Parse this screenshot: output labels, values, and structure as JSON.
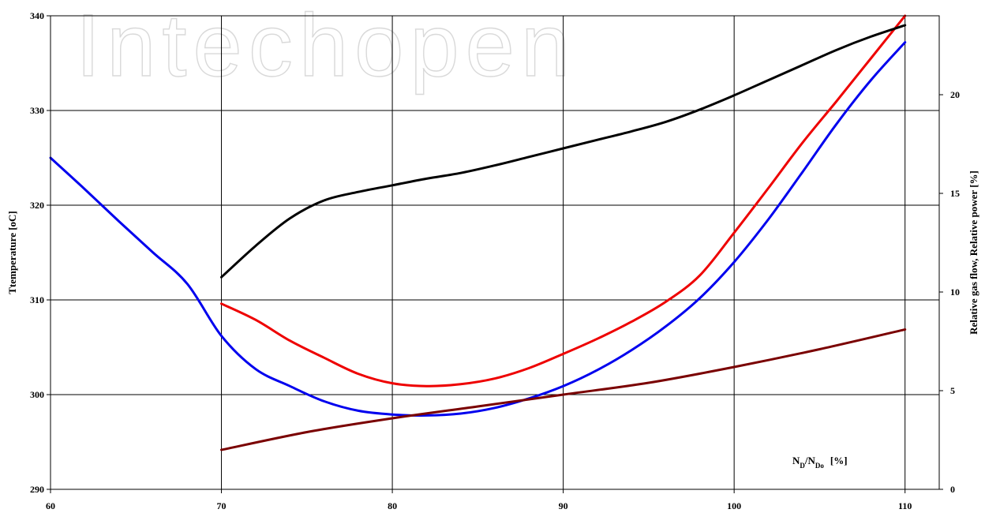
{
  "watermark": "Intechopen",
  "chart_data": {
    "type": "line",
    "title": "",
    "xlabel_main": "N",
    "xlabel_sub1": "D",
    "xlabel_mid": "/N",
    "xlabel_sub2": "Do",
    "xlabel_unit": "[%]",
    "ylabel": "Ttemperature  [oC]",
    "y2label": "Relative gas flow, Relative power [%]",
    "xlim": [
      60,
      112
    ],
    "ylim": [
      290,
      340
    ],
    "y2lim": [
      0,
      24
    ],
    "x_ticks": [
      60,
      70,
      80,
      90,
      100,
      110
    ],
    "y_ticks": [
      290,
      300,
      310,
      320,
      330,
      340
    ],
    "y2_ticks": [
      0,
      5,
      10,
      15,
      20
    ],
    "grid": true,
    "legend": "none",
    "series": [
      {
        "axis": "left",
        "color": "#0000ee",
        "x": [
          60,
          62,
          64,
          66,
          68,
          70,
          72,
          74,
          76,
          78,
          80,
          82,
          84,
          86,
          88,
          90,
          92,
          94,
          96,
          98,
          100,
          102,
          104,
          106,
          108,
          110
        ],
        "y": [
          325.0,
          321.7,
          318.3,
          315.0,
          311.7,
          306.2,
          302.7,
          300.9,
          299.3,
          298.3,
          297.9,
          297.8,
          298.0,
          298.6,
          299.6,
          300.9,
          302.6,
          304.7,
          307.2,
          310.2,
          314.0,
          318.5,
          323.5,
          328.6,
          333.2,
          337.2
        ]
      },
      {
        "axis": "left",
        "color": "#ee0000",
        "x": [
          70,
          72,
          74,
          76,
          78,
          80,
          82,
          84,
          86,
          88,
          90,
          92,
          94,
          96,
          98,
          100,
          102,
          104,
          106,
          108,
          110
        ],
        "y": [
          309.6,
          307.9,
          305.7,
          303.9,
          302.2,
          301.2,
          300.9,
          301.1,
          301.7,
          302.8,
          304.3,
          305.9,
          307.7,
          309.8,
          312.6,
          317.1,
          321.8,
          326.6,
          331.0,
          335.5,
          340.0
        ]
      },
      {
        "axis": "left",
        "color": "#000000",
        "x": [
          70,
          72,
          74,
          76,
          78,
          80,
          82,
          84,
          86,
          88,
          90,
          92,
          94,
          96,
          98,
          100,
          102,
          104,
          106,
          108,
          110
        ],
        "y": [
          312.4,
          315.7,
          318.6,
          320.5,
          321.4,
          322.1,
          322.8,
          323.4,
          324.2,
          325.1,
          326.0,
          326.9,
          327.8,
          328.8,
          330.1,
          331.6,
          333.2,
          334.8,
          336.4,
          337.8,
          339.0
        ]
      },
      {
        "axis": "right",
        "color": "#7a0000",
        "x": [
          70,
          75,
          80,
          85,
          90,
          95,
          100,
          105,
          110
        ],
        "y": [
          2.0,
          2.9,
          3.6,
          4.2,
          4.8,
          5.4,
          6.2,
          7.1,
          8.1
        ]
      }
    ]
  }
}
